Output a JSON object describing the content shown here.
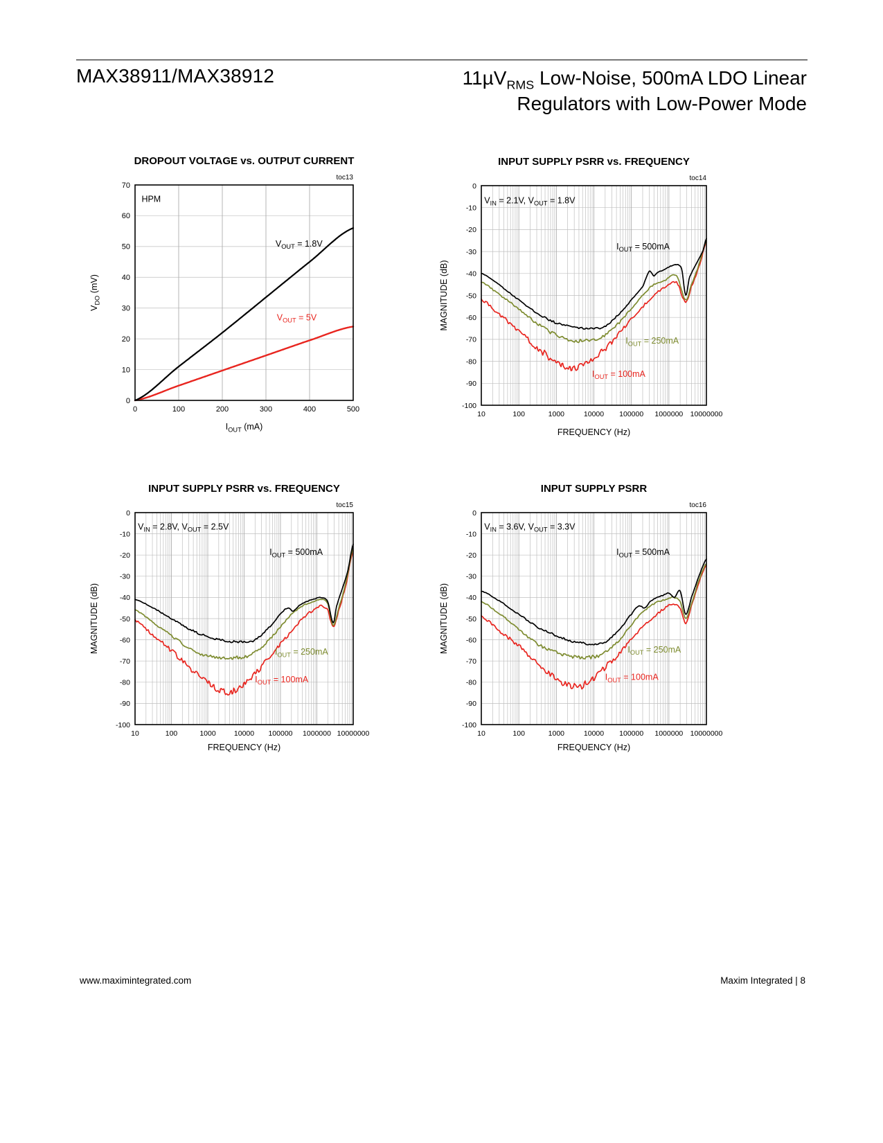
{
  "header": {
    "part_number": "MAX38911/MAX38912",
    "title_line1": "11µV~RMS~ Low-Noise, 500mA LDO Linear",
    "title_line2": "Regulators with Low-Power Mode"
  },
  "footer": {
    "website": "www.maximintegrated.com",
    "page_label": "Maxim Integrated | 8"
  },
  "colors": {
    "black": "#000000",
    "red": "#e8251f",
    "olive": "#7d8b2f",
    "grid_minor": "#bfbfbf",
    "grid_major": "#a8a8a8"
  },
  "chart_data": [
    {
      "type": "line",
      "toc": "toc13",
      "title": "DROPOUT VOLTAGE vs. OUTPUT CURRENT",
      "xlabel": "I~OUT~ (mA)",
      "ylabel": "V~DO~ (mV)",
      "x_scale": "linear",
      "xlim": [
        0,
        500
      ],
      "xticks": [
        0,
        100,
        200,
        300,
        400,
        500
      ],
      "ylim": [
        0,
        70
      ],
      "yticks": [
        0,
        10,
        20,
        30,
        40,
        50,
        60,
        70
      ],
      "grid": true,
      "annotations": [
        {
          "text": "HPM",
          "x": 15,
          "y": 64.5,
          "color": "#000000"
        },
        {
          "text": "V~OUT~ = 1.8V",
          "x": 322,
          "y": 50,
          "color": "#000000"
        },
        {
          "text": "V~OUT~ = 5V",
          "x": 325,
          "y": 26,
          "color": "#e8251f"
        }
      ],
      "series": [
        {
          "name": "VOUT = 5V",
          "color": "#e8251f",
          "width": 2.4,
          "noise": 0,
          "x": [
            0,
            100,
            200,
            300,
            400,
            500
          ],
          "y": [
            0,
            4.8,
            9.7,
            14.6,
            19.5,
            24
          ]
        },
        {
          "name": "VOUT = 1.8V",
          "color": "#000000",
          "width": 2.2,
          "noise": 0,
          "x": [
            0,
            100,
            200,
            300,
            400,
            500
          ],
          "y": [
            0,
            11,
            22,
            33.5,
            45,
            56
          ]
        }
      ]
    },
    {
      "type": "line",
      "toc": "toc14",
      "title": "INPUT SUPPLY PSRR vs. FREQUENCY",
      "xlabel": "FREQUENCY (Hz)",
      "ylabel": "MAGNITUDE (dB)",
      "x_scale": "log",
      "xlim": [
        10,
        10000000
      ],
      "xticks": [
        10,
        100,
        1000,
        10000,
        100000,
        1000000,
        10000000
      ],
      "ylim": [
        -100,
        0
      ],
      "yticks": [
        0,
        -10,
        -20,
        -30,
        -40,
        -50,
        -60,
        -70,
        -80,
        -90,
        -100
      ],
      "grid": true,
      "annotations": [
        {
          "text": "V~IN~ = 2.1V, V~OUT~ = 1.8V",
          "x": 12,
          "y": -8,
          "color": "#000000"
        },
        {
          "text": "I~OUT~ = 500mA",
          "x": 40000,
          "y": -29,
          "color": "#000000"
        },
        {
          "text": "I~OUT~ = 250mA",
          "x": 70000,
          "y": -72,
          "color": "#7d8b2f"
        },
        {
          "text": "I~OUT~ = 100mA",
          "x": 9000,
          "y": -87,
          "color": "#e8251f"
        }
      ],
      "series": [
        {
          "name": "IOUT = 100mA",
          "color": "#e8251f",
          "width": 1.7,
          "noise": 1.8,
          "x": [
            10,
            32,
            100,
            316,
            1000,
            2000,
            4000,
            10000,
            20000,
            50000,
            100000,
            200000,
            400000,
            800000,
            1600000,
            2800000,
            4000000,
            6300000,
            10000000
          ],
          "y": [
            -52,
            -59,
            -66,
            -74,
            -80,
            -82.5,
            -83,
            -78,
            -74,
            -67,
            -61,
            -55,
            -50,
            -46,
            -44,
            -53,
            -46,
            -37,
            -26
          ]
        },
        {
          "name": "IOUT = 250mA",
          "color": "#7d8b2f",
          "width": 1.7,
          "noise": 0.9,
          "x": [
            10,
            32,
            100,
            316,
            1000,
            3160,
            10000,
            20000,
            50000,
            100000,
            200000,
            400000,
            800000,
            1600000,
            2800000,
            4000000,
            6300000,
            10000000
          ],
          "y": [
            -44,
            -50,
            -56,
            -63,
            -68,
            -70.5,
            -70,
            -68,
            -62,
            -56,
            -50,
            -45,
            -43,
            -41,
            -52,
            -45,
            -36,
            -25
          ]
        },
        {
          "name": "IOUT = 500mA",
          "color": "#000000",
          "width": 1.7,
          "noise": 0.55,
          "x": [
            10,
            20,
            50,
            100,
            200,
            500,
            1000,
            2000,
            5000,
            10000,
            20000,
            50000,
            100000,
            200000,
            300000,
            400000,
            500000,
            700000,
            1000000,
            1600000,
            2200000,
            2800000,
            3500000,
            5600000,
            8000000,
            10000000
          ],
          "y": [
            -40,
            -43,
            -48,
            -52,
            -56,
            -60,
            -62.5,
            -64,
            -65,
            -65,
            -64,
            -58,
            -52,
            -46,
            -39,
            -41,
            -39.5,
            -38.5,
            -37,
            -36,
            -38,
            -50,
            -42,
            -35,
            -30,
            -24
          ]
        }
      ]
    },
    {
      "type": "line",
      "toc": "toc15",
      "title": "INPUT SUPPLY PSRR vs. FREQUENCY",
      "xlabel": "FREQUENCY (Hz)",
      "ylabel": "MAGNITUDE (dB)",
      "x_scale": "log",
      "xlim": [
        10,
        10000000
      ],
      "xticks": [
        10,
        100,
        1000,
        10000,
        100000,
        1000000,
        10000000
      ],
      "ylim": [
        -100,
        0
      ],
      "yticks": [
        0,
        -10,
        -20,
        -30,
        -40,
        -50,
        -60,
        -70,
        -80,
        -90,
        -100
      ],
      "grid": true,
      "annotations": [
        {
          "text": "V~IN~ = 2.8V, V~OUT~ = 2.5V",
          "x": 12,
          "y": -8,
          "color": "#000000"
        },
        {
          "text": "I~OUT~ = 500mA",
          "x": 50000,
          "y": -20,
          "color": "#000000"
        },
        {
          "text": "I~OUT~ = 250mA",
          "x": 70000,
          "y": -67,
          "color": "#7d8b2f"
        },
        {
          "text": "I~OUT~ = 100mA",
          "x": 20000,
          "y": -80,
          "color": "#e8251f"
        }
      ],
      "series": [
        {
          "name": "IOUT = 100mA",
          "color": "#e8251f",
          "width": 1.7,
          "noise": 1.8,
          "x": [
            10,
            32,
            100,
            316,
            1000,
            2000,
            4000,
            10000,
            20000,
            50000,
            100000,
            200000,
            400000,
            800000,
            1260000,
            2000000,
            2800000,
            4000000,
            6300000,
            10000000
          ],
          "y": [
            -51,
            -58,
            -65,
            -73,
            -80,
            -84,
            -85,
            -81,
            -76,
            -68,
            -62,
            -56,
            -50,
            -46,
            -44,
            -46,
            -54,
            -46,
            -34,
            -18
          ]
        },
        {
          "name": "IOUT = 250mA",
          "color": "#7d8b2f",
          "width": 1.7,
          "noise": 0.9,
          "x": [
            10,
            32,
            100,
            316,
            1000,
            3160,
            10000,
            20000,
            50000,
            100000,
            200000,
            400000,
            800000,
            1260000,
            2000000,
            2800000,
            4000000,
            6300000,
            10000000
          ],
          "y": [
            -46,
            -52,
            -58,
            -64,
            -67.5,
            -68.5,
            -68,
            -66,
            -60,
            -54,
            -48,
            -44,
            -42,
            -41,
            -43,
            -53,
            -45,
            -33,
            -17
          ]
        },
        {
          "name": "IOUT = 500mA",
          "color": "#000000",
          "width": 1.7,
          "noise": 0.55,
          "x": [
            10,
            32,
            100,
            316,
            1000,
            3160,
            10000,
            20000,
            50000,
            100000,
            158000,
            224000,
            316000,
            500000,
            800000,
            1260000,
            2000000,
            2800000,
            3500000,
            5000000,
            7000000,
            10000000
          ],
          "y": [
            -41,
            -45,
            -50,
            -55,
            -58.5,
            -60.5,
            -61,
            -60,
            -54,
            -48,
            -45,
            -46.5,
            -44,
            -42,
            -41,
            -40,
            -42,
            -52,
            -44,
            -36,
            -28,
            -15
          ]
        }
      ]
    },
    {
      "type": "line",
      "toc": "toc16",
      "title": "INPUT SUPPLY PSRR",
      "xlabel": "FREQUENCY (Hz)",
      "ylabel": "MAGNITUDE (dB)",
      "x_scale": "log",
      "xlim": [
        10,
        10000000
      ],
      "xticks": [
        10,
        100,
        1000,
        10000,
        100000,
        1000000,
        10000000
      ],
      "ylim": [
        -100,
        0
      ],
      "yticks": [
        0,
        -10,
        -20,
        -30,
        -40,
        -50,
        -60,
        -70,
        -80,
        -90,
        -100
      ],
      "grid": true,
      "annotations": [
        {
          "text": "V~IN~ = 3.6V, V~OUT~ = 3.3V",
          "x": 12,
          "y": -8,
          "color": "#000000"
        },
        {
          "text": "I~OUT~ = 500mA",
          "x": 40000,
          "y": -20,
          "color": "#000000"
        },
        {
          "text": "I~OUT~ = 250mA",
          "x": 80000,
          "y": -66,
          "color": "#7d8b2f"
        },
        {
          "text": "I~OUT~ = 100mA",
          "x": 20000,
          "y": -79,
          "color": "#e8251f"
        }
      ],
      "series": [
        {
          "name": "IOUT = 100mA",
          "color": "#e8251f",
          "width": 1.7,
          "noise": 1.8,
          "x": [
            10,
            32,
            100,
            316,
            1000,
            2000,
            4000,
            10000,
            20000,
            50000,
            100000,
            200000,
            400000,
            800000,
            1260000,
            2000000,
            2800000,
            4000000,
            6300000,
            10000000
          ],
          "y": [
            -49,
            -56,
            -63,
            -71,
            -78,
            -81,
            -82,
            -78,
            -73,
            -66,
            -60,
            -54,
            -49,
            -45,
            -43,
            -45,
            -52,
            -44,
            -33,
            -25
          ]
        },
        {
          "name": "IOUT = 250mA",
          "color": "#7d8b2f",
          "width": 1.7,
          "noise": 0.9,
          "x": [
            10,
            32,
            100,
            316,
            1000,
            3160,
            10000,
            20000,
            50000,
            100000,
            200000,
            400000,
            800000,
            1260000,
            2000000,
            2800000,
            4000000,
            6300000,
            10000000
          ],
          "y": [
            -42,
            -48,
            -55,
            -62,
            -66,
            -68,
            -68,
            -66,
            -60,
            -53,
            -47,
            -43,
            -41,
            -40,
            -42,
            -50,
            -43,
            -32,
            -24
          ]
        },
        {
          "name": "IOUT = 500mA",
          "color": "#000000",
          "width": 1.7,
          "noise": 0.55,
          "x": [
            10,
            32,
            100,
            316,
            1000,
            3160,
            10000,
            20000,
            50000,
            100000,
            158000,
            224000,
            316000,
            500000,
            700000,
            1000000,
            1400000,
            2000000,
            2800000,
            4000000,
            6300000,
            10000000
          ],
          "y": [
            -37,
            -42,
            -48,
            -54,
            -58,
            -61,
            -62,
            -61,
            -55,
            -48,
            -44,
            -45,
            -42,
            -40,
            -39,
            -38,
            -40,
            -37,
            -48,
            -40,
            -30,
            -22
          ]
        }
      ]
    }
  ]
}
